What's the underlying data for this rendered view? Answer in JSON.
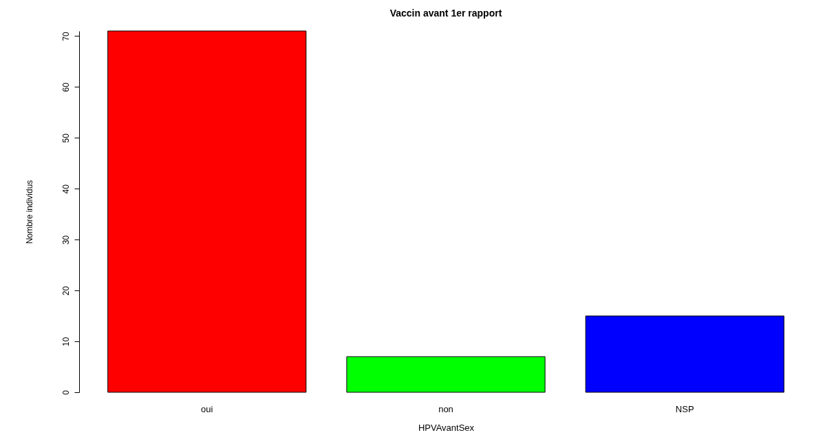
{
  "chart_data": {
    "type": "bar",
    "title": "Vaccin avant 1er rapport",
    "xlabel": "HPVAvantSex",
    "ylabel": "Nombre individus",
    "categories": [
      "oui",
      "non",
      "NSP"
    ],
    "values": [
      71,
      7,
      15
    ],
    "colors": [
      "#ff0000",
      "#00ff00",
      "#0000ff"
    ],
    "ylim": [
      0,
      71
    ],
    "yticks": [
      0,
      10,
      20,
      30,
      40,
      50,
      60,
      70
    ],
    "grid": false,
    "legend": false
  }
}
